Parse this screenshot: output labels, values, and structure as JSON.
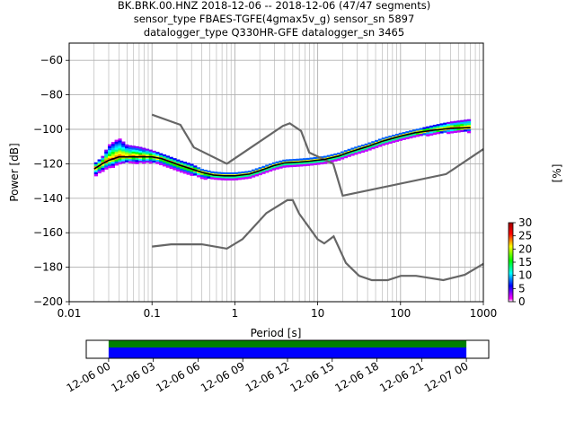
{
  "chart_data": [
    {
      "type": "heatmap",
      "title_lines": [
        "BK.BRK.00.HNZ   2018-12-06 -- 2018-12-06  (47/47 segments)",
        "sensor_type FBAES-TGFE(4gmax5v_g) sensor_sn 5897",
        "datalogger_type Q330HR-GFE datalogger_sn 3465"
      ],
      "xlabel": "Period [s]",
      "ylabel": "Power [dB]",
      "x_scale": "log",
      "xlim": [
        0.01,
        1000
      ],
      "ylim": [
        -200,
        -50
      ],
      "x_ticks": [
        0.01,
        0.1,
        1,
        10,
        100,
        1000
      ],
      "x_tick_labels": [
        "0.01",
        "0.1",
        "1",
        "10",
        "100",
        "1000"
      ],
      "y_ticks": [
        -200,
        -180,
        -160,
        -140,
        -120,
        -100,
        -80,
        -60
      ],
      "y_tick_labels": [
        "−200",
        "−180",
        "−160",
        "−140",
        "−120",
        "−100",
        "−80",
        "−60"
      ],
      "grid": true,
      "colorbar": {
        "label": "[%]",
        "range": [
          0,
          30
        ],
        "ticks": [
          "0",
          "5",
          "10",
          "15",
          "20",
          "25",
          "30"
        ]
      },
      "noise_model_high": {
        "periods": [
          0.1,
          0.22,
          0.32,
          0.8,
          3.8,
          4.6,
          6.3,
          7.9,
          15.4,
          20,
          354.8,
          1000
        ],
        "power": [
          -91.5,
          -97.4,
          -110.5,
          -120,
          -98,
          -96.5,
          -101,
          -113.5,
          -120,
          -138.5,
          -126,
          -111.5
        ]
      },
      "noise_model_low": {
        "periods": [
          0.1,
          0.17,
          0.4,
          0.8,
          1.24,
          2.4,
          4.3,
          5,
          6,
          10,
          12,
          15.6,
          21.9,
          31.6,
          45,
          70,
          101,
          154,
          328,
          600,
          1000
        ],
        "power": [
          -168,
          -166.7,
          -166.7,
          -169.2,
          -163.7,
          -148.6,
          -141.1,
          -141.1,
          -149,
          -163.8,
          -166.2,
          -162.1,
          -177.5,
          -185,
          -187.5,
          -187.5,
          -185,
          -185,
          -187.5,
          -184.4,
          -178
        ]
      },
      "mean_psd": {
        "periods": [
          0.02,
          0.025,
          0.03,
          0.04,
          0.05,
          0.07,
          0.1,
          0.13,
          0.17,
          0.22,
          0.3,
          0.4,
          0.55,
          0.75,
          1,
          1.5,
          2,
          3,
          4,
          6,
          8,
          12,
          18,
          25,
          40,
          60,
          100,
          150,
          250,
          400,
          700
        ],
        "power": [
          -123,
          -120,
          -118,
          -116,
          -116,
          -116,
          -116,
          -117,
          -119,
          -121,
          -123,
          -125,
          -126.5,
          -127,
          -127,
          -126,
          -124,
          -121,
          -119.5,
          -119,
          -118.5,
          -117.5,
          -115.5,
          -113,
          -110,
          -107,
          -104,
          -102,
          -100.5,
          -99.5,
          -99
        ]
      },
      "band_upper_offsets_db": [
        3,
        4,
        9,
        11,
        7,
        6,
        4,
        3,
        3,
        3,
        3,
        2,
        2,
        2,
        2,
        2,
        2,
        2,
        2,
        2,
        2,
        2,
        2,
        2,
        2,
        2,
        2,
        2,
        3,
        4,
        5
      ],
      "band_lower_offsets_db": [
        4,
        4,
        4,
        4,
        3,
        3,
        3,
        3,
        3,
        3,
        3,
        3,
        2,
        2,
        2,
        2,
        2,
        2,
        2,
        2,
        2,
        2,
        2,
        2,
        2,
        2,
        2,
        2,
        2,
        2,
        2
      ]
    },
    {
      "type": "timeline",
      "start": "12-06 00",
      "end": "12-07 00",
      "ticks": [
        "12-06 00",
        "12-06 03",
        "12-06 06",
        "12-06 09",
        "12-06 12",
        "12-06 15",
        "12-06 18",
        "12-06 21",
        "12-07 00"
      ],
      "xlim_hours": [
        -1.5,
        25.5
      ],
      "data_start_hours": 0,
      "data_end_hours": 24,
      "band_colors": [
        "#008000",
        "#0000ff"
      ]
    }
  ]
}
